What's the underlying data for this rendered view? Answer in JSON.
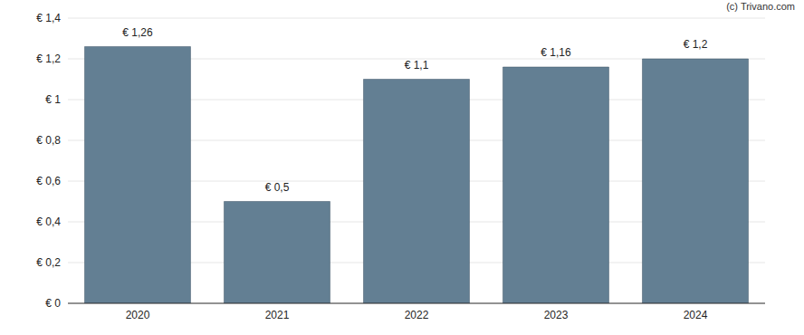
{
  "chart_data": {
    "type": "bar",
    "annotation": "(c) Trivano.com",
    "categories": [
      "2020",
      "2021",
      "2022",
      "2023",
      "2024"
    ],
    "values": [
      1.26,
      0.5,
      1.1,
      1.16,
      1.2
    ],
    "value_labels": [
      "€ 1,26",
      "€ 0,5",
      "€ 1,1",
      "€ 1,16",
      "€ 1,2"
    ],
    "data_labels": true,
    "color": "#637f93",
    "ylim": [
      0,
      1.4
    ],
    "yticks": [
      {
        "value": 0,
        "label": "€ 0"
      },
      {
        "value": 0.2,
        "label": "€ 0,2"
      },
      {
        "value": 0.4,
        "label": "€ 0,4"
      },
      {
        "value": 0.6,
        "label": "€ 0,6"
      },
      {
        "value": 0.8,
        "label": "€ 0,8"
      },
      {
        "value": 1,
        "label": "€ 1"
      },
      {
        "value": 1.2,
        "label": "€ 1,2"
      },
      {
        "value": 1.4,
        "label": "€ 1,4"
      }
    ],
    "grid": true
  }
}
